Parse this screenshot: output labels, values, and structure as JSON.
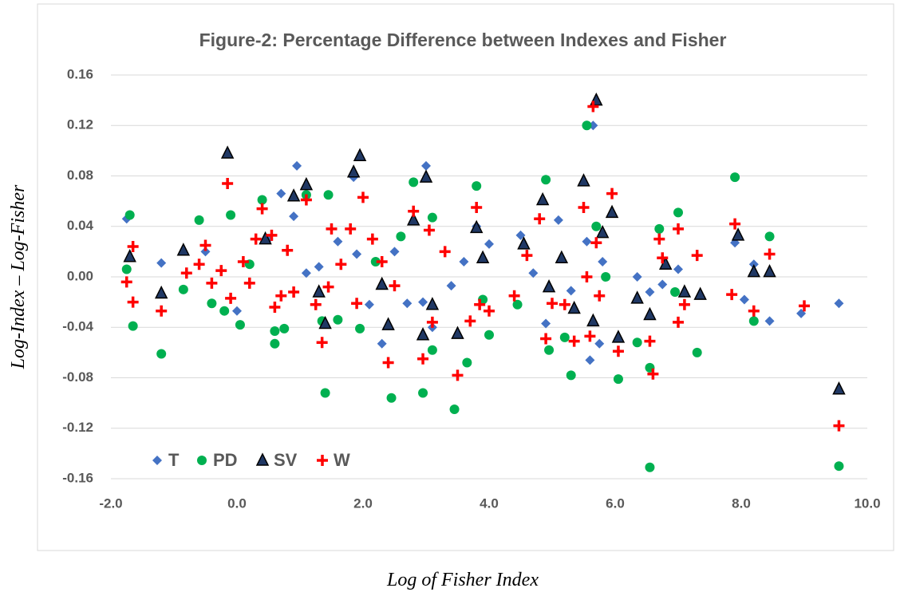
{
  "chart_data": {
    "type": "scatter",
    "title": "Figure-2: Percentage Difference between Indexes and Fisher",
    "x_label": "Log of Fisher Index",
    "y_label": "Log-Index  –  Log-Fisher",
    "xlim": [
      -2.0,
      10.0
    ],
    "ylim": [
      -0.16,
      0.16
    ],
    "xticks": [
      {
        "value": -2,
        "label": "-2.0"
      },
      {
        "value": 0,
        "label": "0.0"
      },
      {
        "value": 2,
        "label": "2.0"
      },
      {
        "value": 4,
        "label": "4.0"
      },
      {
        "value": 6,
        "label": "6.0"
      },
      {
        "value": 8,
        "label": "8.0"
      },
      {
        "value": 10,
        "label": "10.0"
      }
    ],
    "yticks": [
      -0.16,
      -0.12,
      -0.08,
      -0.04,
      {
        "value": 0,
        "label": "0.00"
      },
      0.04,
      0.08,
      0.12,
      0.16
    ],
    "grid": true,
    "legend": "lower left",
    "series": [
      {
        "name": "T",
        "color": "#4472c4",
        "marker": "diamond",
        "x": [
          -1.75,
          -1.2,
          -0.5,
          0.0,
          0.5,
          0.7,
          0.9,
          0.95,
          1.1,
          1.3,
          1.6,
          1.85,
          1.9,
          2.1,
          2.3,
          2.5,
          2.7,
          2.95,
          3.0,
          3.1,
          3.4,
          3.6,
          3.8,
          4.0,
          4.5,
          4.7,
          4.9,
          5.1,
          5.3,
          5.55,
          5.6,
          5.65,
          5.75,
          5.8,
          6.35,
          6.55,
          6.75,
          7.0,
          7.9,
          8.05,
          8.2,
          8.45,
          8.95,
          9.55
        ],
        "values": [
          0.046,
          0.011,
          0.02,
          -0.027,
          0.03,
          0.066,
          0.048,
          0.088,
          0.003,
          0.008,
          0.028,
          0.079,
          0.018,
          -0.022,
          -0.053,
          0.02,
          -0.021,
          -0.02,
          0.088,
          -0.04,
          -0.007,
          0.012,
          0.04,
          0.026,
          0.033,
          0.003,
          -0.037,
          0.045,
          -0.011,
          0.028,
          -0.066,
          0.12,
          -0.053,
          0.012,
          0.0,
          -0.012,
          -0.006,
          0.006,
          0.027,
          -0.018,
          0.01,
          -0.035,
          -0.029,
          -0.021
        ]
      },
      {
        "name": "PD",
        "color": "#00b050",
        "marker": "circle",
        "x": [
          -1.7,
          -1.65,
          -1.75,
          -1.2,
          -0.85,
          -0.6,
          -0.4,
          -0.2,
          -0.1,
          0.05,
          0.2,
          0.4,
          0.6,
          0.6,
          0.75,
          1.1,
          1.35,
          1.4,
          1.45,
          1.6,
          1.95,
          2.2,
          2.45,
          2.6,
          2.8,
          2.95,
          3.1,
          3.1,
          3.45,
          3.65,
          3.8,
          3.9,
          4.0,
          4.45,
          4.9,
          4.95,
          5.2,
          5.3,
          5.55,
          5.7,
          5.85,
          6.05,
          6.35,
          6.55,
          6.55,
          6.7,
          6.95,
          7.0,
          7.3,
          7.9,
          8.2,
          8.45,
          9.55
        ],
        "values": [
          0.049,
          -0.039,
          0.006,
          -0.061,
          -0.01,
          0.045,
          -0.021,
          -0.027,
          0.049,
          -0.038,
          0.01,
          0.061,
          -0.043,
          -0.053,
          -0.041,
          0.065,
          -0.035,
          -0.092,
          0.065,
          -0.034,
          -0.041,
          0.012,
          -0.096,
          0.032,
          0.075,
          -0.092,
          -0.058,
          0.047,
          -0.105,
          -0.068,
          0.072,
          -0.018,
          -0.046,
          -0.022,
          0.077,
          -0.058,
          -0.048,
          -0.078,
          0.12,
          0.04,
          0.0,
          -0.081,
          -0.052,
          -0.072,
          -0.151,
          0.038,
          -0.012,
          0.051,
          -0.06,
          0.079,
          -0.035,
          0.032,
          -0.15
        ]
      },
      {
        "name": "SV",
        "color": "#000000",
        "marker": "triangle",
        "x": [
          -1.7,
          -1.2,
          -0.85,
          -0.15,
          0.45,
          0.9,
          1.1,
          1.3,
          1.4,
          1.85,
          1.95,
          2.3,
          2.4,
          2.8,
          2.95,
          3.0,
          3.1,
          3.5,
          3.8,
          3.9,
          4.55,
          4.85,
          4.95,
          5.15,
          5.35,
          5.5,
          5.65,
          5.7,
          5.8,
          5.95,
          6.05,
          6.35,
          6.55,
          6.8,
          7.1,
          7.35,
          7.95,
          8.2,
          8.45,
          9.55
        ],
        "values": [
          0.016,
          -0.013,
          0.021,
          0.098,
          0.03,
          0.064,
          0.073,
          -0.012,
          -0.037,
          0.083,
          0.096,
          -0.006,
          -0.038,
          0.045,
          -0.046,
          0.079,
          -0.022,
          -0.045,
          0.039,
          0.015,
          0.026,
          0.061,
          -0.008,
          0.015,
          -0.025,
          0.076,
          -0.035,
          0.14,
          0.035,
          0.051,
          -0.048,
          -0.017,
          -0.03,
          0.01,
          -0.012,
          -0.014,
          0.033,
          0.004,
          0.004,
          -0.089
        ]
      },
      {
        "name": "W",
        "color": "#ff0000",
        "marker": "plus",
        "x": [
          -1.75,
          -1.65,
          -1.65,
          -1.2,
          -0.8,
          -0.6,
          -0.5,
          -0.4,
          -0.25,
          -0.15,
          -0.1,
          0.1,
          0.2,
          0.3,
          0.4,
          0.55,
          0.6,
          0.7,
          0.8,
          0.9,
          1.1,
          1.25,
          1.35,
          1.45,
          1.5,
          1.65,
          1.8,
          1.9,
          2.0,
          2.15,
          2.3,
          2.4,
          2.5,
          2.8,
          2.95,
          3.05,
          3.1,
          3.3,
          3.5,
          3.7,
          3.8,
          3.85,
          4.0,
          4.4,
          4.6,
          4.8,
          4.9,
          5.0,
          5.2,
          5.35,
          5.5,
          5.55,
          5.6,
          5.65,
          5.7,
          5.75,
          5.95,
          6.05,
          6.55,
          6.6,
          6.7,
          6.75,
          7.0,
          7.0,
          7.1,
          7.3,
          7.85,
          7.9,
          8.2,
          8.45,
          9.0,
          9.55
        ],
        "values": [
          -0.004,
          0.024,
          -0.02,
          -0.027,
          0.003,
          0.01,
          0.025,
          -0.005,
          0.005,
          0.074,
          -0.017,
          0.012,
          -0.005,
          0.03,
          0.054,
          0.033,
          -0.024,
          -0.015,
          0.021,
          -0.012,
          0.061,
          -0.022,
          -0.052,
          -0.008,
          0.038,
          0.01,
          0.038,
          -0.021,
          0.063,
          0.03,
          0.012,
          -0.068,
          -0.007,
          0.052,
          -0.065,
          0.037,
          -0.036,
          0.02,
          -0.078,
          -0.035,
          0.055,
          -0.022,
          -0.027,
          -0.015,
          0.017,
          0.046,
          -0.049,
          -0.021,
          -0.022,
          -0.051,
          0.055,
          0.0,
          -0.047,
          0.135,
          0.027,
          -0.015,
          0.066,
          -0.059,
          -0.051,
          -0.077,
          0.03,
          0.015,
          -0.036,
          0.038,
          -0.022,
          0.017,
          -0.014,
          0.042,
          -0.027,
          0.018,
          -0.023,
          -0.118
        ]
      }
    ]
  }
}
